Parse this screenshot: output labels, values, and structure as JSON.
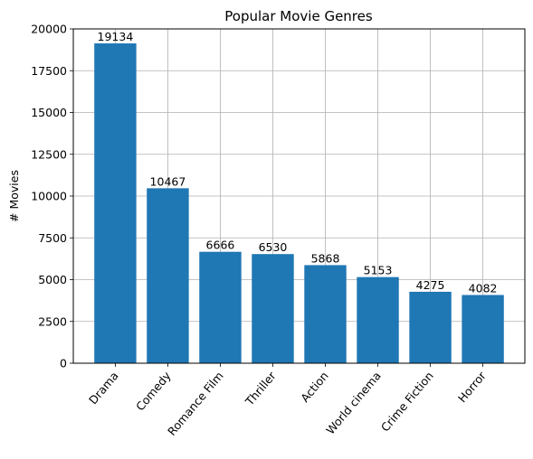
{
  "chart_data": {
    "type": "bar",
    "title": "Popular Movie Genres",
    "xlabel": "",
    "ylabel": "# Movies",
    "categories": [
      "Drama",
      "Comedy",
      "Romance Film",
      "Thriller",
      "Action",
      "World cinema",
      "Crime Fiction",
      "Horror"
    ],
    "values": [
      19134,
      10467,
      6666,
      6530,
      5868,
      5153,
      4275,
      4082
    ],
    "ylim": [
      0,
      20000
    ],
    "yticks": [
      0,
      2500,
      5000,
      7500,
      10000,
      12500,
      15000,
      17500,
      20000
    ],
    "grid": true,
    "bar_color": "#1f77b4",
    "grid_color": "#b0b0b0"
  }
}
